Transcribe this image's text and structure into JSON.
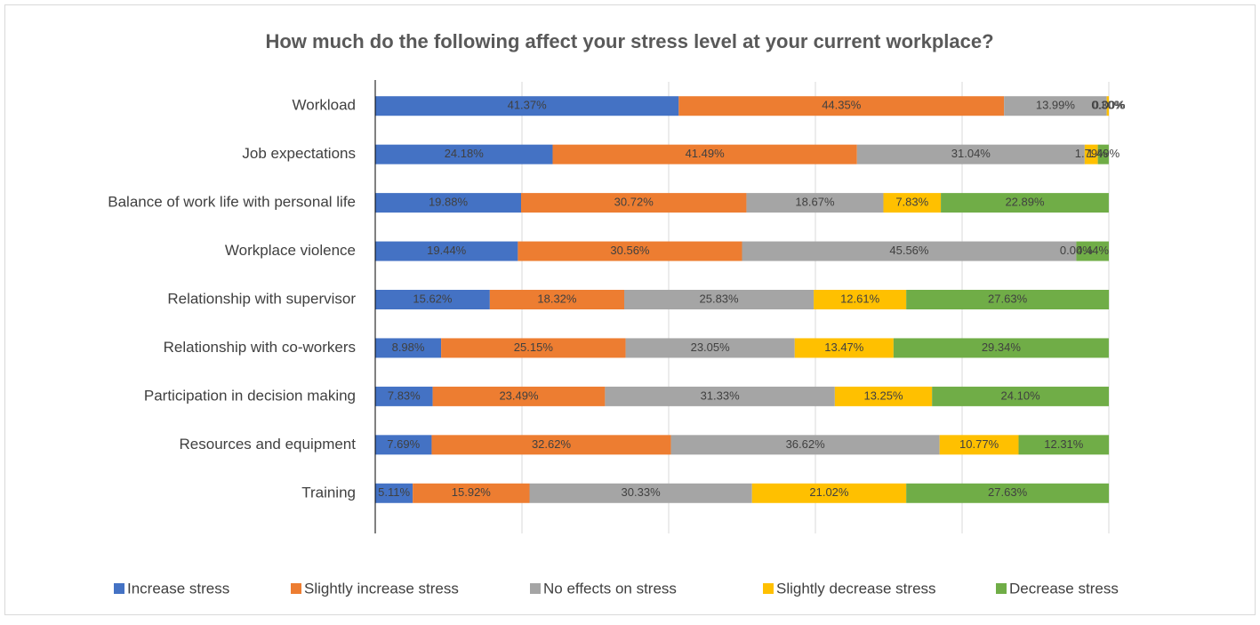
{
  "chart_data": {
    "type": "stacked-bar-horizontal",
    "title": "How much do the following affect your stress level at your current workplace?",
    "categories": [
      "Workload",
      "Job expectations",
      "Balance of work life with personal life",
      "Workplace violence",
      "Relationship with supervisor",
      "Relationship with co-workers",
      "Participation in decision making",
      "Resources and equipment",
      "Training"
    ],
    "series": [
      {
        "name": "Increase stress",
        "color": "#4472c4",
        "values": [
          41.37,
          24.18,
          19.88,
          19.44,
          15.62,
          8.98,
          7.83,
          7.69,
          5.11
        ],
        "value_labels": [
          "41.37%",
          "24.18%",
          "19.88%",
          "19.44%",
          "15.62%",
          "8.98%",
          "7.83%",
          "7.69%",
          "5.11%"
        ]
      },
      {
        "name": "Slightly increase stress",
        "color": "#ed7d31",
        "values": [
          44.35,
          41.49,
          30.72,
          30.56,
          18.32,
          25.15,
          23.49,
          32.62,
          15.92
        ],
        "value_labels": [
          "44.35%",
          "41.49%",
          "30.72%",
          "30.56%",
          "18.32%",
          "25.15%",
          "23.49%",
          "32.62%",
          "15.92%"
        ]
      },
      {
        "name": "No effects on stress",
        "color": "#a5a5a5",
        "values": [
          13.99,
          31.04,
          18.67,
          45.56,
          25.83,
          23.05,
          31.33,
          36.62,
          30.33
        ],
        "value_labels": [
          "13.99%",
          "31.04%",
          "18.67%",
          "45.56%",
          "25.83%",
          "23.05%",
          "31.33%",
          "36.62%",
          "30.33%"
        ]
      },
      {
        "name": "Slightly decrease stress",
        "color": "#ffc000",
        "values": [
          0.3,
          1.79,
          7.83,
          0.0,
          12.61,
          13.47,
          13.25,
          10.77,
          21.02
        ],
        "value_labels": [
          "0.30%",
          "1.79%",
          "7.83%",
          "0.00%",
          "12.61%",
          "13.47%",
          "13.25%",
          "10.77%",
          "21.02%"
        ]
      },
      {
        "name": "Decrease stress",
        "color": "#70ad47",
        "values": [
          0.0,
          1.49,
          22.89,
          4.44,
          27.63,
          29.34,
          24.1,
          12.31,
          27.63
        ],
        "value_labels": [
          "0.00%",
          "1.49%",
          "22.89%",
          "4.44%",
          "27.63%",
          "29.34%",
          "24.10%",
          "12.31%",
          "27.63%"
        ]
      }
    ],
    "xlim": [
      0,
      100
    ],
    "xticks": [
      0,
      20,
      40,
      60,
      80,
      100
    ],
    "grid": true,
    "legend": "bottom"
  }
}
